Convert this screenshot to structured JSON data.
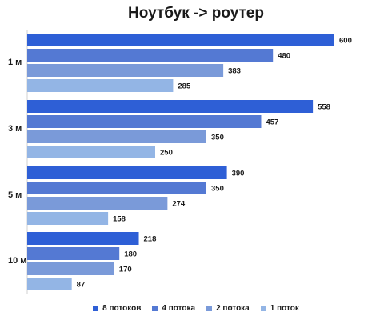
{
  "chart_data": {
    "type": "bar",
    "orientation": "horizontal",
    "title": "Ноутбук -> роутер",
    "categories": [
      "1 м",
      "3 м",
      "5 м",
      "10 м"
    ],
    "series": [
      {
        "name": "8 потоков",
        "color": "#2e5fd6",
        "values": [
          600,
          558,
          390,
          218
        ]
      },
      {
        "name": "4 потока",
        "color": "#5479d3",
        "values": [
          480,
          457,
          350,
          180
        ]
      },
      {
        "name": "2 потока",
        "color": "#7a9ad9",
        "values": [
          383,
          350,
          274,
          170
        ]
      },
      {
        "name": "1 поток",
        "color": "#93b5e5",
        "values": [
          285,
          250,
          158,
          87
        ]
      }
    ],
    "xlim": [
      0,
      600
    ],
    "grid": false,
    "legend_position": "bottom"
  }
}
